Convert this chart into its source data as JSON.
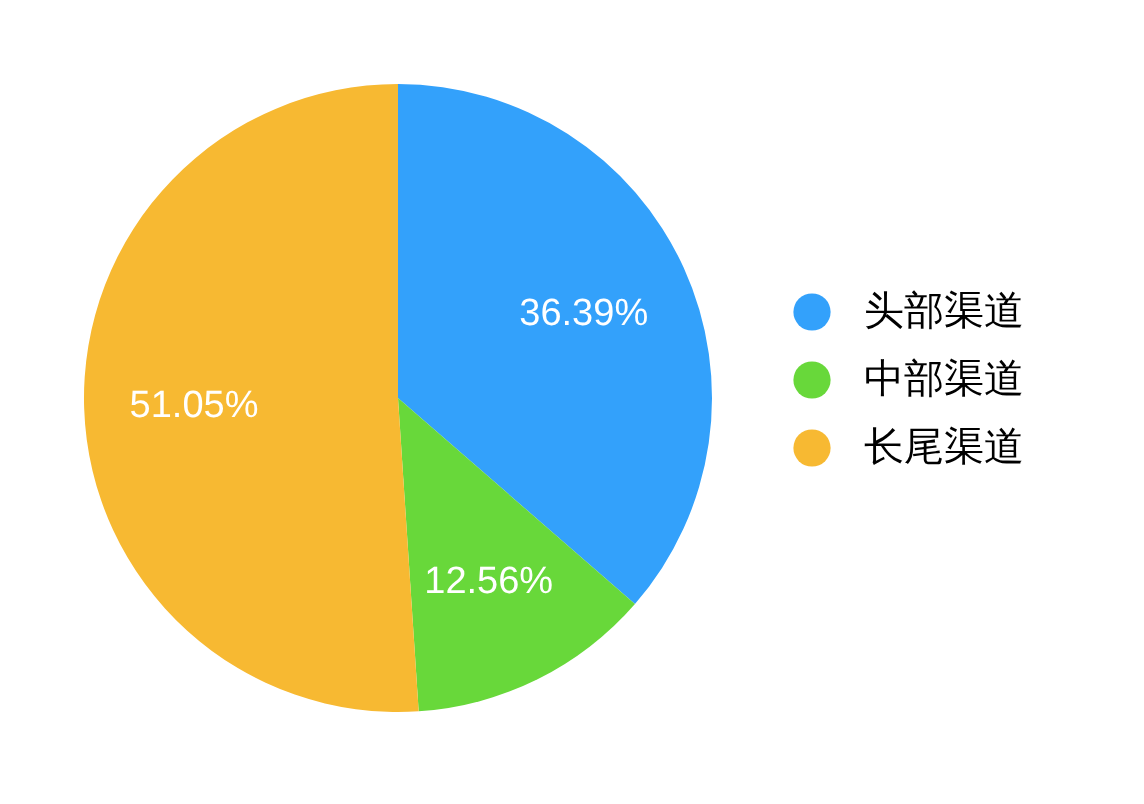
{
  "chart_data": {
    "type": "pie",
    "categories": [
      "头部渠道",
      "中部渠道",
      "长尾渠道"
    ],
    "values": [
      36.39,
      12.56,
      51.05
    ],
    "colors": [
      "#33a1fb",
      "#68d83a",
      "#f7b932"
    ],
    "value_labels": [
      "36.39%",
      "12.56%",
      "51.05%"
    ],
    "legend": "right"
  }
}
